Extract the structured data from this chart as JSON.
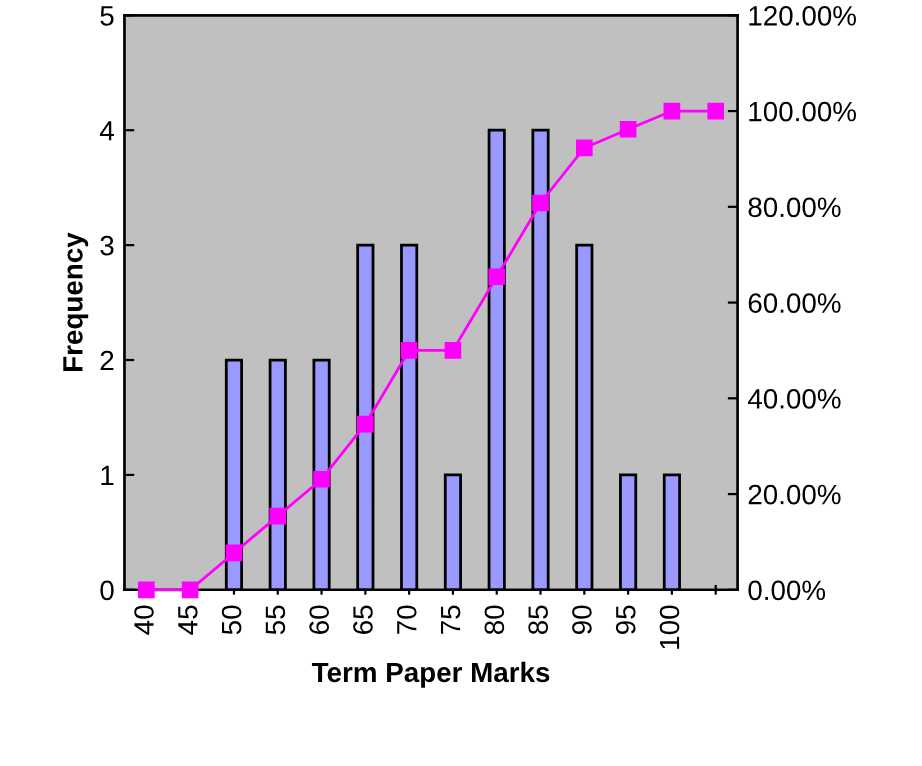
{
  "chart_data": {
    "type": "bar",
    "xlabel": "Term Paper Marks",
    "ylabel": "Frequency",
    "categories": [
      "40",
      "45",
      "50",
      "55",
      "60",
      "65",
      "70",
      "75",
      "80",
      "85",
      "90",
      "95",
      "100",
      null
    ],
    "series": [
      {
        "color": "#9999ff",
        "values": [
          0,
          0,
          2,
          2,
          2,
          3,
          3,
          1,
          4,
          4,
          3,
          1,
          1,
          0
        ]
      },
      {
        "type": "line",
        "axis": "y2",
        "color": "#ff00ff",
        "marker": "square",
        "values": [
          0,
          0,
          7.7,
          15.4,
          23.1,
          34.6,
          50,
          50,
          65.4,
          80.8,
          92.3,
          96.2,
          100,
          100
        ]
      }
    ],
    "ylim": [
      0,
      5
    ],
    "yticks": [
      0,
      1,
      2,
      3,
      4,
      5
    ],
    "y2lim": [
      0,
      120
    ],
    "y2ticks": [
      {
        "value": 0,
        "label": "0.00%"
      },
      {
        "value": 20,
        "label": "20.00%"
      },
      {
        "value": 40,
        "label": "40.00%"
      },
      {
        "value": 60,
        "label": "60.00%"
      },
      {
        "value": 80,
        "label": "80.00%"
      },
      {
        "value": 100,
        "label": "100.00%"
      },
      {
        "value": 120,
        "label": "120.00%"
      }
    ],
    "grid": false
  }
}
